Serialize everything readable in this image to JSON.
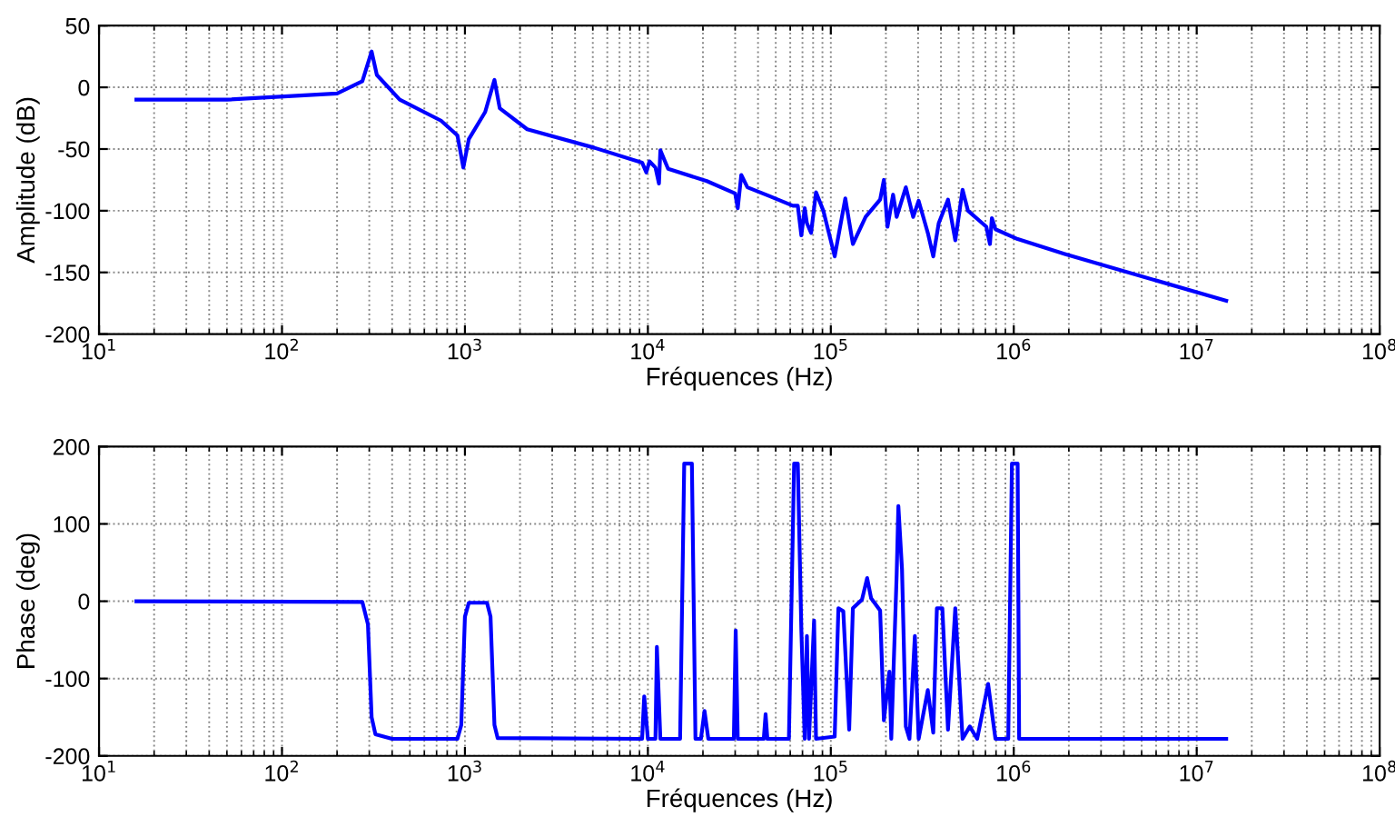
{
  "chart_data": [
    {
      "type": "line",
      "xlabel": "Fréquences (Hz)",
      "ylabel": "Amplitude (dB)",
      "log": "x",
      "grid": true,
      "line_style": "solid",
      "marker": "none",
      "xlim": [
        10,
        100000000
      ],
      "xticks": [
        {
          "value": 10,
          "label": "10$^{1}$"
        },
        {
          "value": 100,
          "label": "10$^{2}$"
        },
        {
          "value": 1000,
          "label": "10$^{3}$"
        },
        {
          "value": 10000,
          "label": "10$^{4}$"
        },
        {
          "value": 100000,
          "label": "10$^{5}$"
        },
        {
          "value": 1000000,
          "label": "10$^{6}$"
        },
        {
          "value": 10000000,
          "label": "10$^{7}$"
        },
        {
          "value": 100000000,
          "label": "10$^{8}$"
        }
      ],
      "ylim": [
        -200,
        50
      ],
      "yticks": [
        -200,
        -150,
        -100,
        -50,
        0,
        50
      ],
      "series": [
        {
          "color": "#0000ff",
          "x": [
            16,
            50,
            200,
            275,
            309,
            330,
            440,
            740,
            910,
            980,
            1050,
            1290,
            1450,
            1550,
            2190,
            5100,
            9300,
            9800,
            10200,
            11000,
            11500,
            11700,
            12900,
            21000,
            30000,
            31000,
            32400,
            35000,
            46000,
            62000,
            66000,
            69000,
            72000,
            74000,
            78000,
            83000,
            91000,
            105000,
            120000,
            132000,
            155000,
            186000,
            195000,
            204000,
            219000,
            229000,
            257000,
            282000,
            302000,
            339000,
            363000,
            389000,
            437000,
            479000,
            525000,
            562000,
            708000,
            741000,
            759000,
            794000,
            1050000,
            1900000,
            14500000
          ],
          "values": [
            -10,
            -10,
            -5,
            5,
            29,
            10,
            -10,
            -27,
            -39,
            -65,
            -42,
            -20,
            6,
            -17,
            -34,
            -49,
            -61,
            -69,
            -60,
            -65,
            -78,
            -51,
            -66,
            -76,
            -86,
            -98,
            -71,
            -81,
            -88,
            -96,
            -96,
            -120,
            -98,
            -110,
            -118,
            -85,
            -100,
            -137,
            -90,
            -127,
            -105,
            -91,
            -75,
            -113,
            -87,
            -105,
            -81,
            -105,
            -92,
            -118,
            -137,
            -110,
            -91,
            -124,
            -83,
            -100,
            -113,
            -127,
            -106,
            -115,
            -123,
            -135,
            -173
          ]
        }
      ]
    },
    {
      "type": "line",
      "xlabel": "Fréquences (Hz)",
      "ylabel": "Phase (deg)",
      "log": "x",
      "grid": true,
      "line_style": "solid",
      "marker": "none",
      "xlim": [
        10,
        100000000
      ],
      "xticks": [
        {
          "value": 10,
          "label": "10$^{1}$"
        },
        {
          "value": 100,
          "label": "10$^{2}$"
        },
        {
          "value": 1000,
          "label": "10$^{3}$"
        },
        {
          "value": 10000,
          "label": "10$^{4}$"
        },
        {
          "value": 100000,
          "label": "10$^{5}$"
        },
        {
          "value": 1000000,
          "label": "10$^{6}$"
        },
        {
          "value": 10000000,
          "label": "10$^{7}$"
        },
        {
          "value": 100000000,
          "label": "10$^{8}$"
        }
      ],
      "ylim": [
        -200,
        200
      ],
      "yticks": [
        -200,
        -100,
        0,
        100,
        200
      ],
      "series": [
        {
          "color": "#0000ff",
          "x": [
            16,
            275,
            295,
            309,
            324,
            400,
            910,
            955,
            1000,
            1050,
            1320,
            1380,
            1450,
            1510,
            9300,
            9550,
            10000,
            11000,
            11200,
            11700,
            15000,
            15800,
            17400,
            18200,
            19500,
            20400,
            21400,
            29500,
            30200,
            31000,
            43000,
            44000,
            45000,
            59000,
            63000,
            66000,
            69000,
            72000,
            74000,
            76000,
            81000,
            83000,
            105000,
            110000,
            117000,
            126000,
            132000,
            148000,
            158000,
            166000,
            186000,
            195000,
            209000,
            214000,
            229000,
            234000,
            245000,
            257000,
            269000,
            288000,
            302000,
            339000,
            363000,
            380000,
            407000,
            437000,
            479000,
            525000,
            575000,
            631000,
            724000,
            794000,
            933000,
            977000,
            1050000,
            1070000,
            14500000
          ],
          "values": [
            0,
            -1,
            -30,
            -150,
            -172,
            -178,
            -178,
            -160,
            -20,
            -2,
            -2,
            -20,
            -160,
            -177,
            -178,
            -123,
            -178,
            -178,
            -59,
            -178,
            -178,
            178,
            178,
            -178,
            -178,
            -142,
            -178,
            -178,
            -38,
            -178,
            -178,
            -146,
            -178,
            -178,
            178,
            178,
            -37,
            -178,
            -45,
            -178,
            -25,
            -178,
            -175,
            -9,
            -13,
            -166,
            -9,
            2,
            30,
            4,
            -12,
            -154,
            -91,
            -178,
            34,
            123,
            41,
            -162,
            -178,
            -45,
            -178,
            -115,
            -170,
            -9,
            -9,
            -166,
            -9,
            -178,
            -162,
            -178,
            -107,
            -178,
            -178,
            178,
            178,
            -178,
            -178
          ]
        }
      ]
    }
  ]
}
